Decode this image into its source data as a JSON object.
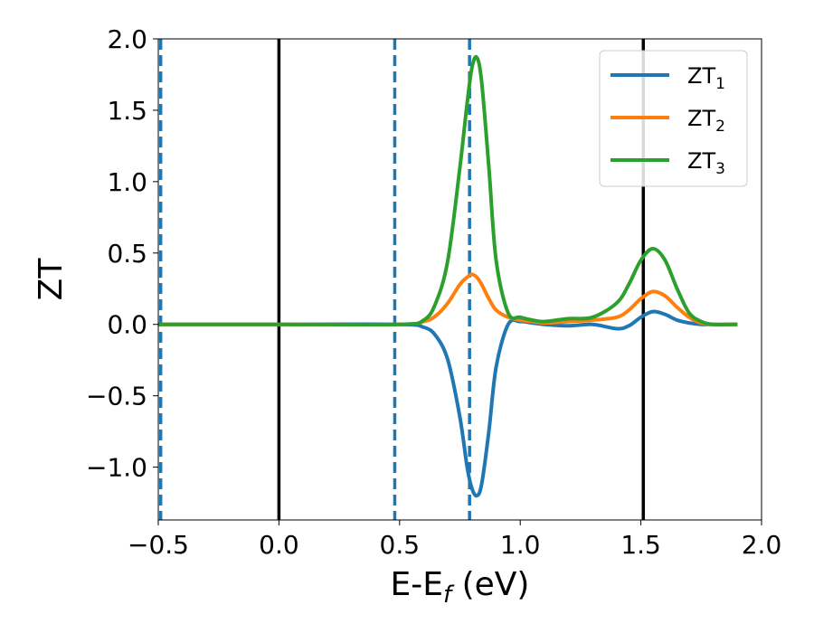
{
  "chart_data": {
    "type": "line",
    "xlabel": "E-E",
    "xlabel_sub": "f",
    "xlabel_unit": " (eV)",
    "ylabel": "ZT",
    "xlim": [
      -0.5,
      2.0
    ],
    "ylim": [
      -1.37,
      2.0
    ],
    "xticks": [
      -0.5,
      0.0,
      0.5,
      1.0,
      1.5,
      2.0
    ],
    "xtick_labels": [
      "−0.5",
      "0.0",
      "0.5",
      "1.0",
      "1.5",
      "2.0"
    ],
    "yticks": [
      2.0,
      1.5,
      1.0,
      0.5,
      0.0,
      -0.5,
      -1.0
    ],
    "ytick_labels": [
      "2.0",
      "1.5",
      "1.0",
      "0.5",
      "0.0",
      "−0.5",
      "−1.0"
    ],
    "grid": false,
    "legend_position": "top-right",
    "vertical_lines_solid": [
      0.0,
      1.51
    ],
    "vertical_lines_dashed": [
      -0.49,
      0.48,
      0.79
    ],
    "colors": {
      "ZT1": "#1f77b4",
      "ZT2": "#ff7f0e",
      "ZT3": "#2ca02c",
      "vline_solid": "#000000",
      "vline_dashed": "#1f77b4"
    },
    "x": [
      -0.5,
      0.0,
      0.5,
      0.6,
      0.65,
      0.7,
      0.75,
      0.78,
      0.8,
      0.82,
      0.84,
      0.87,
      0.9,
      0.95,
      1.0,
      1.05,
      1.1,
      1.2,
      1.3,
      1.4,
      1.45,
      1.5,
      1.55,
      1.6,
      1.65,
      1.7,
      1.75,
      1.8,
      1.9
    ],
    "series": [
      {
        "name_base": "ZT",
        "name_sub": "1",
        "values": [
          0.0,
          0.0,
          0.0,
          -0.02,
          -0.08,
          -0.25,
          -0.65,
          -1.0,
          -1.15,
          -1.2,
          -1.12,
          -0.75,
          -0.3,
          0.0,
          0.02,
          0.01,
          0.0,
          -0.01,
          0.0,
          -0.03,
          -0.01,
          0.05,
          0.09,
          0.07,
          0.03,
          0.01,
          0.0,
          0.0,
          0.0
        ]
      },
      {
        "name_base": "ZT",
        "name_sub": "2",
        "values": [
          0.0,
          0.0,
          0.0,
          0.02,
          0.06,
          0.15,
          0.28,
          0.33,
          0.35,
          0.33,
          0.28,
          0.18,
          0.1,
          0.05,
          0.03,
          0.02,
          0.01,
          0.02,
          0.03,
          0.05,
          0.1,
          0.18,
          0.23,
          0.2,
          0.12,
          0.05,
          0.01,
          0.0,
          0.0
        ]
      },
      {
        "name_base": "ZT",
        "name_sub": "3",
        "values": [
          0.0,
          0.0,
          0.0,
          0.03,
          0.15,
          0.45,
          1.1,
          1.55,
          1.8,
          1.87,
          1.7,
          1.1,
          0.45,
          0.08,
          0.05,
          0.03,
          0.02,
          0.04,
          0.05,
          0.15,
          0.28,
          0.45,
          0.53,
          0.45,
          0.25,
          0.08,
          0.02,
          0.0,
          0.0
        ]
      }
    ]
  }
}
